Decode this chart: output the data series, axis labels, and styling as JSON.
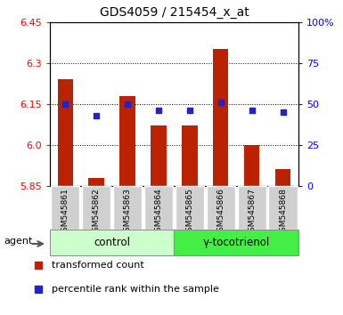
{
  "title": "GDS4059 / 215454_x_at",
  "samples": [
    "GSM545861",
    "GSM545862",
    "GSM545863",
    "GSM545864",
    "GSM545865",
    "GSM545866",
    "GSM545867",
    "GSM545868"
  ],
  "red_values": [
    6.24,
    5.88,
    6.18,
    6.07,
    6.07,
    6.35,
    6.0,
    5.91
  ],
  "blue_values": [
    50,
    43,
    50,
    46,
    46,
    51,
    46,
    45
  ],
  "group_labels": [
    "control",
    "γ-tocotrienol"
  ],
  "group_split": 4,
  "group_color_light": "#ccffcc",
  "group_color_dark": "#44ee44",
  "ylim_left": [
    5.85,
    6.45
  ],
  "ylim_right": [
    0,
    100
  ],
  "yticks_left": [
    5.85,
    6.0,
    6.15,
    6.3,
    6.45
  ],
  "yticks_right": [
    0,
    25,
    50,
    75,
    100
  ],
  "grid_values": [
    6.0,
    6.15,
    6.3
  ],
  "bar_color": "#bb2200",
  "dot_color": "#2222cc",
  "bar_width": 0.5,
  "agent_label": "agent",
  "legend_red": "transformed count",
  "legend_blue": "percentile rank within the sample",
  "xtick_bg": "#d0d0d0",
  "figsize": [
    3.85,
    3.54
  ],
  "dpi": 100
}
